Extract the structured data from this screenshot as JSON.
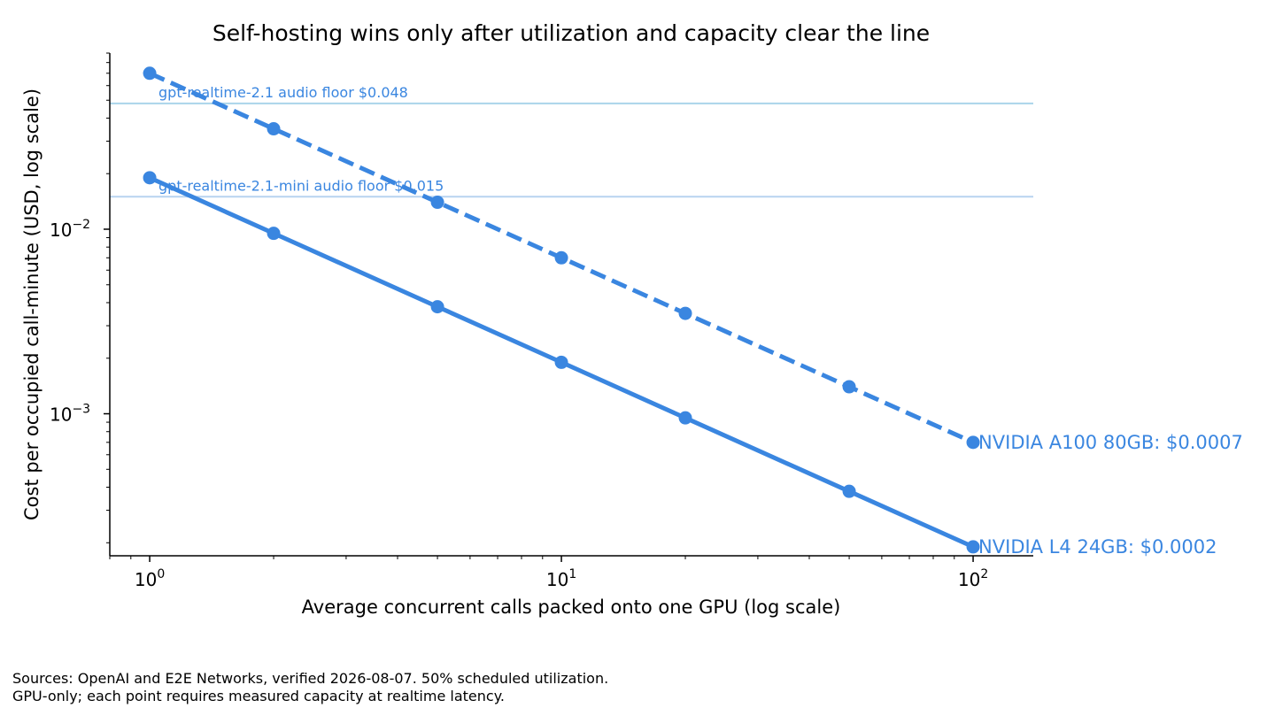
{
  "chart_data": {
    "type": "line",
    "title": "Self-hosting wins only after utilization and capacity clear the line",
    "xlabel": "Average concurrent calls packed onto one GPU (log scale)",
    "ylabel": "Cost per occupied call-minute (USD, log scale)",
    "xscale": "log",
    "yscale": "log",
    "xlim": [
      0.8,
      140
    ],
    "ylim": [
      0.00017,
      0.09
    ],
    "grid": false,
    "legend": "none",
    "xticks": [
      {
        "value": 1,
        "base": "10",
        "exp": "0"
      },
      {
        "value": 10,
        "base": "10",
        "exp": "1"
      },
      {
        "value": 100,
        "base": "10",
        "exp": "2"
      }
    ],
    "yticks": [
      {
        "value": 0.01,
        "base": "10",
        "exp": "−2"
      },
      {
        "value": 0.001,
        "base": "10",
        "exp": "−3"
      }
    ],
    "series": [
      {
        "name": "NVIDIA A100 80GB",
        "end_label": "NVIDIA A100 80GB: $0.0007",
        "style": "dashed",
        "color": "#3a86e0",
        "x": [
          1,
          2,
          5,
          10,
          20,
          50,
          100
        ],
        "y": [
          0.07,
          0.035,
          0.014,
          0.007,
          0.0035,
          0.0014,
          0.0007
        ]
      },
      {
        "name": "NVIDIA L4 24GB",
        "end_label": "NVIDIA L4 24GB: $0.0002",
        "style": "solid",
        "color": "#3a86e0",
        "x": [
          1,
          2,
          5,
          10,
          20,
          50,
          100
        ],
        "y": [
          0.019,
          0.0095,
          0.0038,
          0.0019,
          0.00095,
          0.00038,
          0.00019
        ]
      }
    ],
    "reference_lines": [
      {
        "label": "gpt-realtime-2.1 audio floor $0.048",
        "y": 0.048,
        "line_color": "#aad4ea",
        "text_color": "#3a86e0"
      },
      {
        "label": "gpt-realtime-2.1-mini audio floor $0.015",
        "y": 0.015,
        "line_color": "#b8d3f0",
        "text_color": "#3a86e0"
      }
    ]
  },
  "sources": {
    "line1": "Sources: OpenAI and E2E Networks, verified 2026-08-07. 50% scheduled utilization.",
    "line2": "GPU-only; each point requires measured capacity at realtime latency."
  }
}
